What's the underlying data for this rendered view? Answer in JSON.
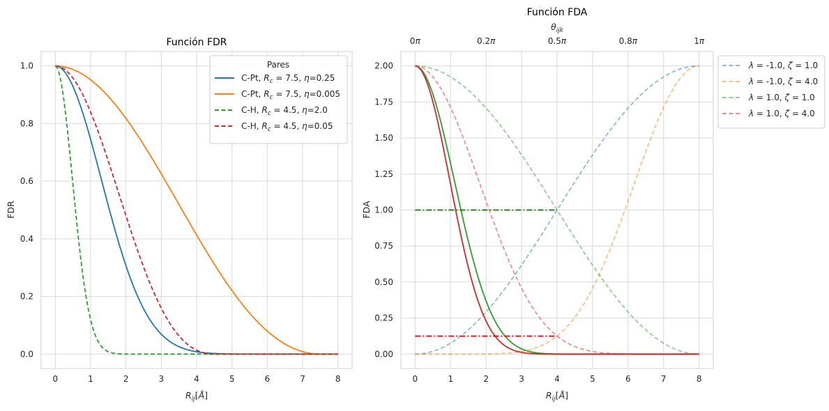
{
  "chart_data": [
    {
      "type": "line",
      "title": "Función FDR",
      "xlabel": "R_ij[Å]",
      "ylabel": "FDR",
      "xlim": [
        -0.4,
        8.4
      ],
      "ylim": [
        -0.05,
        1.05
      ],
      "xticks": [
        0,
        1,
        2,
        3,
        4,
        5,
        6,
        7,
        8
      ],
      "xtick_labels": [
        "0",
        "1",
        "2",
        "3",
        "4",
        "5",
        "6",
        "7",
        "8"
      ],
      "yticks": [
        0.0,
        0.2,
        0.4,
        0.6,
        0.8,
        1.0
      ],
      "ytick_labels": [
        "0.0",
        "0.2",
        "0.4",
        "0.6",
        "0.8",
        "1.0"
      ],
      "grid": true,
      "legend": {
        "title": "Pares",
        "position": "upper-right",
        "entries": [
          {
            "prefix": "C-Pt, ",
            "rc": "7.5",
            "eta": "0.25",
            "color": "#1f77b4",
            "dash": "solid"
          },
          {
            "prefix": "C-Pt, ",
            "rc": "7.5",
            "eta": "0.005",
            "color": "#ff7f0e",
            "dash": "solid"
          },
          {
            "prefix": "C-H, ",
            "rc": "4.5",
            "eta": "2.0",
            "color": "#2ca02c",
            "dash": "dashed"
          },
          {
            "prefix": "C-H, ",
            "rc": "4.5",
            "eta": "0.05",
            "color": "#d62728",
            "dash": "dashed"
          }
        ]
      },
      "series": [
        {
          "name": "C-Pt, R_c = 7.5, η=0.25",
          "kind": "radial",
          "eta": 0.25,
          "rc": 7.5,
          "x_range": [
            0,
            8
          ],
          "color": "#1f77b4",
          "dash": "solid"
        },
        {
          "name": "C-Pt, R_c = 7.5, η=0.005",
          "kind": "radial",
          "eta": 0.005,
          "rc": 7.5,
          "x_range": [
            0,
            8
          ],
          "color": "#ff7f0e",
          "dash": "solid"
        },
        {
          "name": "C-H, R_c = 4.5, η=2.0",
          "kind": "radial",
          "eta": 2.0,
          "rc": 4.5,
          "x_range": [
            0,
            8
          ],
          "color": "#2ca02c",
          "dash": "dashed"
        },
        {
          "name": "C-H, R_c = 4.5, η=0.05",
          "kind": "radial",
          "eta": 0.05,
          "rc": 4.5,
          "x_range": [
            0,
            8
          ],
          "color": "#d62728",
          "dash": "dashed"
        }
      ]
    },
    {
      "type": "line",
      "title": "Función FDA",
      "xlabel": "R_ij[Å]",
      "ylabel": "FDA",
      "top_xlabel": "θ_ijk",
      "xlim": [
        -0.4,
        8.4
      ],
      "ylim": [
        -0.1,
        2.1
      ],
      "xticks": [
        0,
        1,
        2,
        3,
        4,
        5,
        6,
        7,
        8
      ],
      "xtick_labels": [
        "0",
        "1",
        "2",
        "3",
        "4",
        "5",
        "6",
        "7",
        "8"
      ],
      "top_xticks": [
        0,
        2,
        4,
        6,
        8
      ],
      "top_xtick_labels": [
        "0π",
        "0.2π",
        "0.5π",
        "0.8π",
        "1π"
      ],
      "yticks": [
        0.0,
        0.25,
        0.5,
        0.75,
        1.0,
        1.25,
        1.5,
        1.75,
        2.0
      ],
      "ytick_labels": [
        "0.00",
        "0.25",
        "0.50",
        "0.75",
        "1.00",
        "1.25",
        "1.50",
        "1.75",
        "2.00"
      ],
      "grid": true,
      "legend": {
        "position": "outside-right",
        "entries": [
          {
            "lambda": "-1.0",
            "zeta": "1.0",
            "color": "#1f77b4",
            "dash": "dashed"
          },
          {
            "lambda": "-1.0",
            "zeta": "4.0",
            "color": "#ff7f0e",
            "dash": "dashed"
          },
          {
            "lambda": "1.0",
            "zeta": "1.0",
            "color": "#2ca02c",
            "dash": "dashed"
          },
          {
            "lambda": "1.0",
            "zeta": "4.0",
            "color": "#d62728",
            "dash": "dashed"
          }
        ]
      },
      "series": [
        {
          "name": "λ = -1.0, ζ = 1.0",
          "kind": "angular",
          "lambda": -1.0,
          "zeta": 1.0,
          "x_range": [
            0,
            8
          ],
          "color": "#1f77b4",
          "dash": "dashed",
          "alpha": 0.5
        },
        {
          "name": "λ = -1.0, ζ = 4.0",
          "kind": "angular",
          "lambda": -1.0,
          "zeta": 4.0,
          "x_range": [
            0,
            8
          ],
          "color": "#ff7f0e",
          "dash": "dashed",
          "alpha": 0.5
        },
        {
          "name": "λ = 1.0, ζ = 1.0",
          "kind": "angular",
          "lambda": 1.0,
          "zeta": 1.0,
          "x_range": [
            0,
            8
          ],
          "color": "#2ca02c",
          "dash": "dashed",
          "alpha": 0.5
        },
        {
          "name": "λ = 1.0, ζ = 4.0",
          "kind": "angular",
          "lambda": 1.0,
          "zeta": 4.0,
          "x_range": [
            0,
            8
          ],
          "color": "#d62728",
          "dash": "dashed",
          "alpha": 0.5
        },
        {
          "kind": "angular-times-radial",
          "lambda": 1.0,
          "zeta": 1.0,
          "eta": 0.25,
          "rc": 4.5,
          "x_range": [
            0,
            8
          ],
          "color": "#2ca02c",
          "dash": "solid"
        },
        {
          "kind": "angular-times-radial",
          "lambda": 1.0,
          "zeta": 4.0,
          "eta": 0.25,
          "rc": 4.5,
          "x_range": [
            0,
            8
          ],
          "color": "#d62728",
          "dash": "solid"
        },
        {
          "kind": "constant",
          "y": 1.0,
          "x_range": [
            0,
            4
          ],
          "color": "#008000",
          "dash": "dashdot"
        },
        {
          "kind": "constant",
          "y": 0.125,
          "x_range": [
            0,
            4
          ],
          "color": "#e00000",
          "dash": "dashdot"
        }
      ]
    }
  ]
}
